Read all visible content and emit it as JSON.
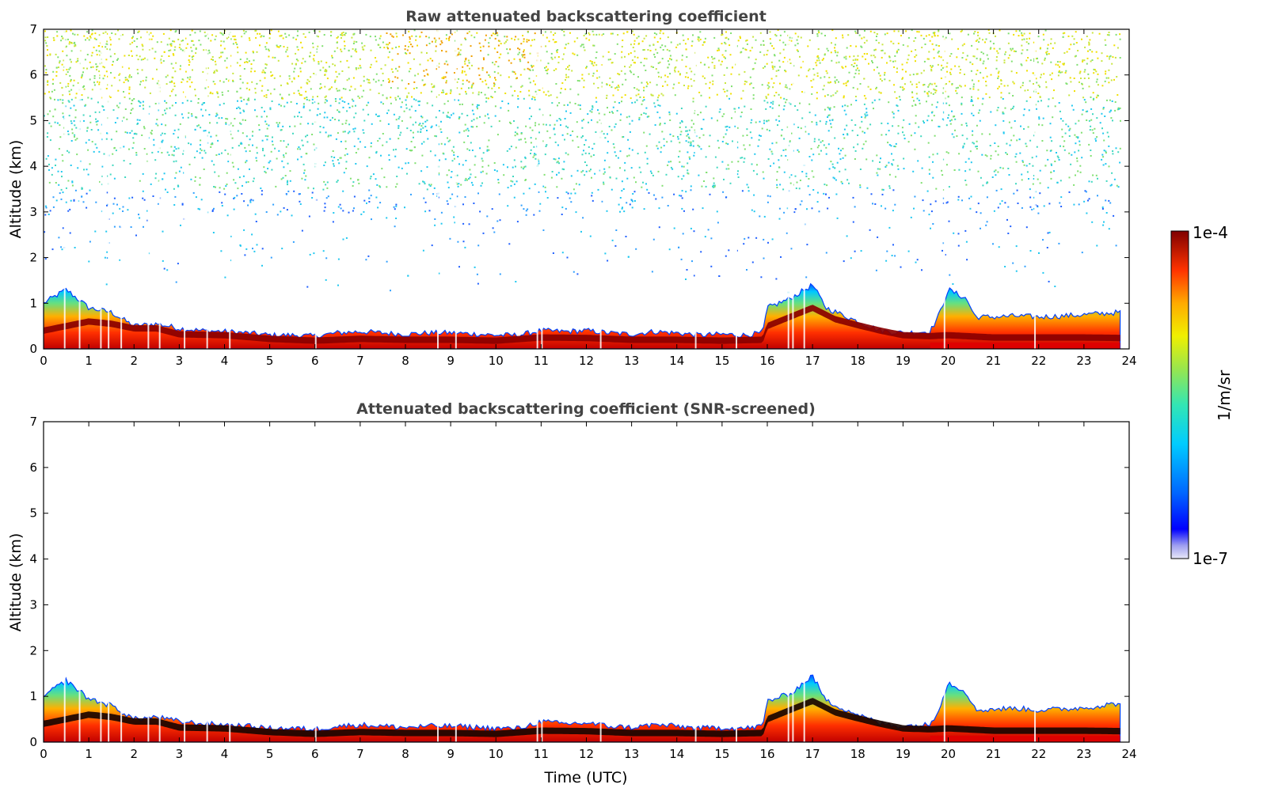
{
  "chart_data": [
    {
      "type": "heatmap",
      "title": "Raw attenuated backscattering coefficient",
      "xlabel": "",
      "ylabel": "Altitude (km)",
      "xlim": [
        0,
        24
      ],
      "ylim": [
        0,
        7
      ],
      "xticks": [
        "0",
        "1",
        "2",
        "3",
        "4",
        "5",
        "6",
        "7",
        "8",
        "9",
        "10",
        "11",
        "12",
        "13",
        "14",
        "15",
        "16",
        "17",
        "18",
        "19",
        "20",
        "21",
        "22",
        "23",
        "24"
      ],
      "yticks": [
        "0",
        "1",
        "2",
        "3",
        "4",
        "5",
        "6",
        "7"
      ],
      "layer_top_km": [
        [
          0,
          1.0
        ],
        [
          0.5,
          1.3
        ],
        [
          1,
          0.9
        ],
        [
          1.5,
          0.8
        ],
        [
          2,
          0.5
        ],
        [
          2.5,
          0.55
        ],
        [
          3,
          0.45
        ],
        [
          3.5,
          0.4
        ],
        [
          4,
          0.38
        ],
        [
          4.5,
          0.35
        ],
        [
          5,
          0.3
        ],
        [
          5.5,
          0.3
        ],
        [
          6,
          0.28
        ],
        [
          6.5,
          0.35
        ],
        [
          7,
          0.38
        ],
        [
          7.5,
          0.35
        ],
        [
          8,
          0.32
        ],
        [
          8.5,
          0.35
        ],
        [
          9,
          0.35
        ],
        [
          9.5,
          0.33
        ],
        [
          10,
          0.3
        ],
        [
          10.5,
          0.3
        ],
        [
          11,
          0.4
        ],
        [
          11.5,
          0.38
        ],
        [
          12,
          0.4
        ],
        [
          12.5,
          0.35
        ],
        [
          13,
          0.32
        ],
        [
          13.5,
          0.38
        ],
        [
          14,
          0.35
        ],
        [
          14.5,
          0.3
        ],
        [
          15,
          0.32
        ],
        [
          15.5,
          0.3
        ],
        [
          15.9,
          0.35
        ],
        [
          16,
          0.9
        ],
        [
          16.5,
          1.1
        ],
        [
          17,
          1.4
        ],
        [
          17.3,
          0.9
        ],
        [
          18,
          0.6
        ],
        [
          18.5,
          0.4
        ],
        [
          19,
          0.35
        ],
        [
          19.6,
          0.38
        ],
        [
          19.8,
          0.75
        ],
        [
          20,
          1.3
        ],
        [
          20.4,
          1.1
        ],
        [
          20.6,
          0.7
        ],
        [
          21,
          0.7
        ],
        [
          21.5,
          0.72
        ],
        [
          22,
          0.7
        ],
        [
          22.5,
          0.72
        ],
        [
          23,
          0.75
        ],
        [
          23.8,
          0.8
        ]
      ],
      "core_km": [
        [
          0,
          0.4
        ],
        [
          1,
          0.6
        ],
        [
          1.5,
          0.55
        ],
        [
          2,
          0.45
        ],
        [
          2.5,
          0.45
        ],
        [
          3,
          0.32
        ],
        [
          4,
          0.3
        ],
        [
          5,
          0.22
        ],
        [
          6,
          0.18
        ],
        [
          7,
          0.22
        ],
        [
          8,
          0.2
        ],
        [
          9,
          0.2
        ],
        [
          10,
          0.18
        ],
        [
          11,
          0.25
        ],
        [
          12,
          0.24
        ],
        [
          13,
          0.2
        ],
        [
          14,
          0.2
        ],
        [
          15,
          0.18
        ],
        [
          15.9,
          0.2
        ],
        [
          16,
          0.5
        ],
        [
          17,
          0.9
        ],
        [
          17.5,
          0.65
        ],
        [
          18,
          0.52
        ],
        [
          18.5,
          0.4
        ],
        [
          19,
          0.3
        ],
        [
          19.6,
          0.28
        ],
        [
          20,
          0.3
        ],
        [
          21,
          0.25
        ],
        [
          22,
          0.25
        ],
        [
          23,
          0.25
        ],
        [
          23.8,
          0.24
        ]
      ]
    },
    {
      "type": "heatmap",
      "title": "Attenuated backscattering coefficient (SNR-screened)",
      "xlabel": "Time (UTC)",
      "ylabel": "Altitude (km)",
      "xlim": [
        0,
        24
      ],
      "ylim": [
        0,
        7
      ],
      "xticks": [
        "0",
        "1",
        "2",
        "3",
        "4",
        "5",
        "6",
        "7",
        "8",
        "9",
        "10",
        "11",
        "12",
        "13",
        "14",
        "15",
        "16",
        "17",
        "18",
        "19",
        "20",
        "21",
        "22",
        "23",
        "24"
      ],
      "yticks": [
        "0",
        "1",
        "2",
        "3",
        "4",
        "5",
        "6",
        "7"
      ],
      "layer_top_km": [
        [
          0,
          1.0
        ],
        [
          0.5,
          1.35
        ],
        [
          1,
          0.95
        ],
        [
          1.5,
          0.8
        ],
        [
          2,
          0.5
        ],
        [
          2.5,
          0.55
        ],
        [
          3,
          0.45
        ],
        [
          3.5,
          0.4
        ],
        [
          4,
          0.38
        ],
        [
          4.5,
          0.35
        ],
        [
          5,
          0.3
        ],
        [
          5.5,
          0.3
        ],
        [
          6,
          0.28
        ],
        [
          6.5,
          0.35
        ],
        [
          7,
          0.38
        ],
        [
          7.5,
          0.35
        ],
        [
          8,
          0.32
        ],
        [
          8.5,
          0.35
        ],
        [
          9,
          0.35
        ],
        [
          9.5,
          0.33
        ],
        [
          10,
          0.3
        ],
        [
          10.5,
          0.3
        ],
        [
          11,
          0.45
        ],
        [
          11.5,
          0.4
        ],
        [
          12,
          0.42
        ],
        [
          12.5,
          0.35
        ],
        [
          13,
          0.32
        ],
        [
          13.5,
          0.38
        ],
        [
          14,
          0.35
        ],
        [
          14.5,
          0.3
        ],
        [
          15,
          0.32
        ],
        [
          15.5,
          0.3
        ],
        [
          15.9,
          0.35
        ],
        [
          16,
          0.9
        ],
        [
          16.5,
          1.05
        ],
        [
          17,
          1.45
        ],
        [
          17.3,
          0.9
        ],
        [
          18,
          0.6
        ],
        [
          18.5,
          0.4
        ],
        [
          19,
          0.35
        ],
        [
          19.6,
          0.38
        ],
        [
          19.8,
          0.75
        ],
        [
          20,
          1.3
        ],
        [
          20.4,
          1.1
        ],
        [
          20.6,
          0.7
        ],
        [
          21,
          0.72
        ],
        [
          21.5,
          0.74
        ],
        [
          22,
          0.7
        ],
        [
          22.5,
          0.72
        ],
        [
          23,
          0.75
        ],
        [
          23.8,
          0.85
        ]
      ],
      "core_km": [
        [
          0,
          0.4
        ],
        [
          1,
          0.6
        ],
        [
          1.5,
          0.55
        ],
        [
          2,
          0.45
        ],
        [
          2.5,
          0.45
        ],
        [
          3,
          0.32
        ],
        [
          4,
          0.3
        ],
        [
          5,
          0.22
        ],
        [
          6,
          0.18
        ],
        [
          7,
          0.22
        ],
        [
          8,
          0.2
        ],
        [
          9,
          0.2
        ],
        [
          10,
          0.18
        ],
        [
          11,
          0.25
        ],
        [
          12,
          0.24
        ],
        [
          13,
          0.2
        ],
        [
          14,
          0.2
        ],
        [
          15,
          0.18
        ],
        [
          15.9,
          0.2
        ],
        [
          16,
          0.5
        ],
        [
          17,
          0.9
        ],
        [
          17.5,
          0.65
        ],
        [
          18,
          0.52
        ],
        [
          18.5,
          0.4
        ],
        [
          19,
          0.3
        ],
        [
          19.6,
          0.28
        ],
        [
          20,
          0.3
        ],
        [
          21,
          0.25
        ],
        [
          22,
          0.25
        ],
        [
          23,
          0.25
        ],
        [
          23.8,
          0.24
        ]
      ]
    }
  ],
  "colorbar": {
    "max_label": "1e-4",
    "min_label": "1e-7",
    "unit_label": "1/m/sr",
    "colormap": "jet",
    "range": [
      1e-07,
      0.0001
    ]
  }
}
